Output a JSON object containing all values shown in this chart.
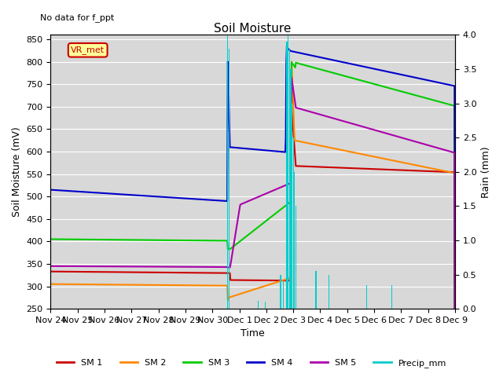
{
  "title": "Soil Moisture",
  "subtitle": "No data for f_ppt",
  "xlabel": "Time",
  "ylabel_left": "Soil Moisture (mV)",
  "ylabel_right": "Rain (mm)",
  "ylim_left": [
    250,
    860
  ],
  "ylim_right": [
    0.0,
    4.0
  ],
  "yticks_left": [
    250,
    300,
    350,
    400,
    450,
    500,
    550,
    600,
    650,
    700,
    750,
    800,
    850
  ],
  "yticks_right": [
    0.0,
    0.5,
    1.0,
    1.5,
    2.0,
    2.5,
    3.0,
    3.5,
    4.0
  ],
  "bg_color": "#d8d8d8",
  "legend_label": "VR_met",
  "legend_box_color": "#ffff99",
  "legend_box_edge": "#cc0000",
  "series_colors": {
    "SM1": "#cc0000",
    "SM2": "#ff8800",
    "SM3": "#00cc00",
    "SM4": "#0000cc",
    "SM5": "#aa00aa",
    "Precip": "#00cccc"
  },
  "xtick_labels": [
    "Nov 24",
    "Nov 25",
    "Nov 26",
    "Nov 27",
    "Nov 28",
    "Nov 29",
    "Nov 30",
    "Dec 1",
    "Dec 2",
    "Dec 3",
    "Dec 4",
    "Dec 5",
    "Dec 6",
    "Dec 7",
    "Dec 8",
    "Dec 9"
  ]
}
